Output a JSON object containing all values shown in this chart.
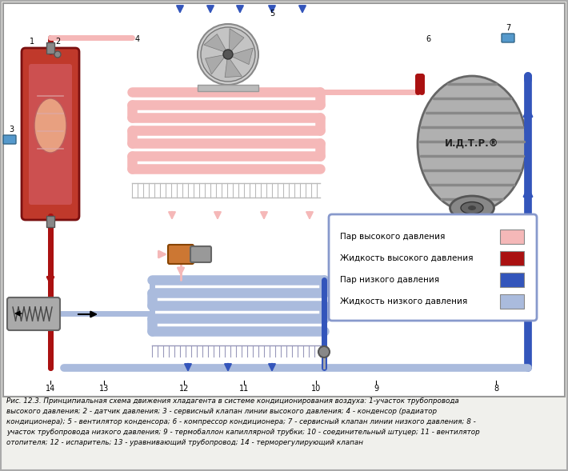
{
  "caption_line1": "Рис. 12.3. Принципиальная схема движения хладагента в системе кондиционирования воздуха: 1-участок трубопровода",
  "caption_line2": "высокого давления; 2 - датчик давления; 3 - сервисный клапан линии высокого давления; 4 - конденсор (радиатор",
  "caption_line3": "кондиционера); 5 - вентилятор конденсора; 6 - компрессор кондиционера; 7 - сервисный клапан линии низкого давления; 8 -",
  "caption_line4": "участок трубопровода низкого давления; 9 - термобаллон капиллярной трубки; 10 - соединительный штуцер; 11 - вентилятор",
  "caption_line5": "отопителя; 12 - испаритель; 13 - уравнивающий трубопровод; 14 - терморегулирующий клапан",
  "bg_color": "#f0f0ec",
  "border_color": "#999999",
  "diagram_bg": "#ffffff",
  "legend_items": [
    {
      "label": "Пар высокого давления",
      "color": "#f5b8b8"
    },
    {
      "label": "Жидкость высокого давления",
      "color": "#aa1111"
    },
    {
      "label": "Пар низкого давления",
      "color": "#3355bb"
    },
    {
      "label": "Жидкость низкого давления",
      "color": "#aabbdd"
    }
  ],
  "hp_color": "#aa1111",
  "hpv_color": "#f5b8b8",
  "lp_color": "#3355bb",
  "lpv_color": "#aabbdd",
  "compressor_text": "И.Д.Т.Р.®",
  "fig_width": 7.1,
  "fig_height": 5.89,
  "dpi": 100
}
